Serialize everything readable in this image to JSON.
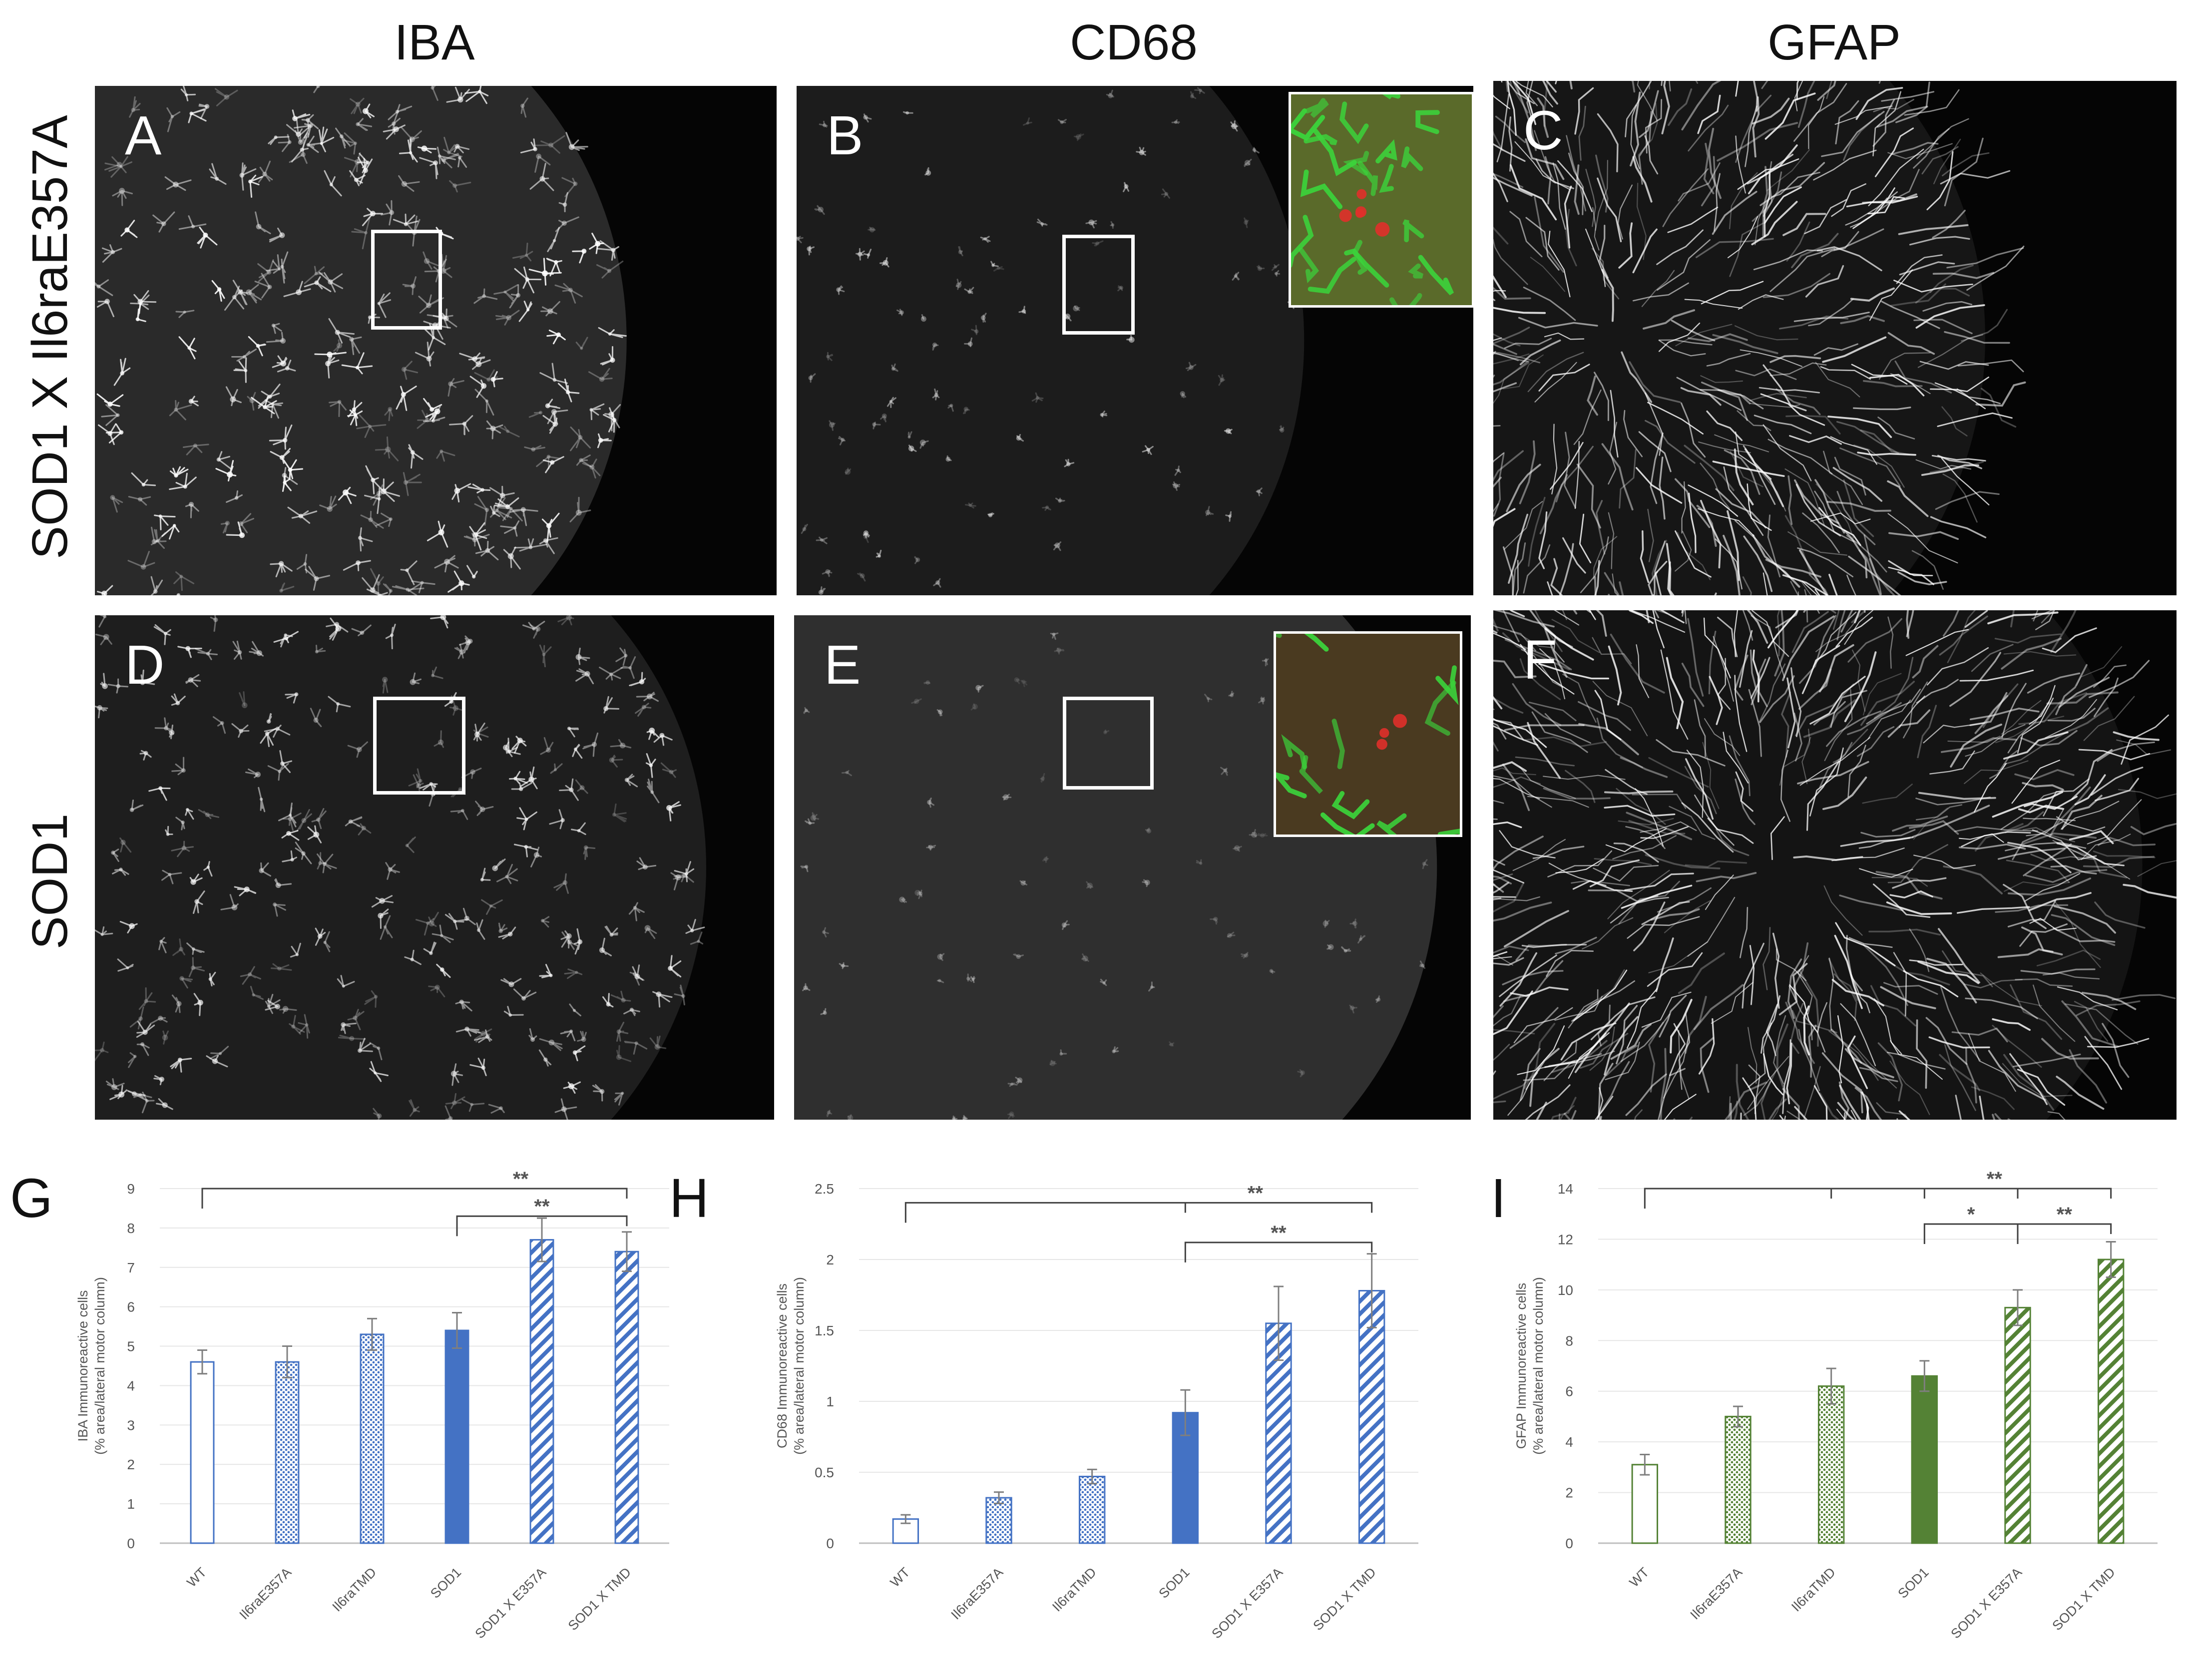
{
  "column_headers": [
    "IBA",
    "CD68",
    "GFAP"
  ],
  "row_headers": [
    "SOD1 X Il6raE357A",
    "SOD1"
  ],
  "panels": [
    {
      "letter": "A",
      "stain": "IBA",
      "genotype": "SOD1 X Il6raE357A",
      "roi_box": true,
      "inset": false
    },
    {
      "letter": "B",
      "stain": "CD68",
      "genotype": "SOD1 X Il6raE357A",
      "roi_box": true,
      "inset": true
    },
    {
      "letter": "C",
      "stain": "GFAP",
      "genotype": "SOD1 X Il6raE357A",
      "roi_box": false,
      "inset": false
    },
    {
      "letter": "D",
      "stain": "IBA",
      "genotype": "SOD1",
      "roi_box": true,
      "inset": false
    },
    {
      "letter": "E",
      "stain": "CD68",
      "genotype": "SOD1",
      "roi_box": true,
      "inset": true
    },
    {
      "letter": "F",
      "stain": "GFAP",
      "genotype": "SOD1",
      "roi_box": false,
      "inset": false
    }
  ],
  "colors": {
    "blue": "#4472c4",
    "green": "#548235",
    "axis": "#bfbfbf",
    "text": "#595959",
    "bracket": "#404040"
  },
  "chart_data": [
    {
      "letter": "G",
      "type": "bar",
      "ylabel": "IBA Immunoreactive cells\n(% area/lateral motor column)",
      "ylim": [
        0,
        9
      ],
      "yticks": [
        0,
        1,
        2,
        3,
        4,
        5,
        6,
        7,
        8,
        9
      ],
      "categories": [
        "WT",
        "Il6raE357A",
        "Il6raTMD",
        "SOD1",
        "SOD1 X E357A",
        "SOD1 X TMD"
      ],
      "values": [
        4.6,
        4.6,
        5.3,
        5.4,
        7.7,
        7.4
      ],
      "errors": [
        0.3,
        0.4,
        0.4,
        0.45,
        0.55,
        0.5
      ],
      "fills": [
        "open",
        "dots",
        "dots",
        "solid",
        "hatch",
        "hatch"
      ],
      "color": "blue",
      "significance": [
        {
          "label": "**",
          "from": 0,
          "to": 5,
          "level": 9.0
        },
        {
          "label": "**",
          "from": 3,
          "to": 5,
          "level": 8.3
        }
      ]
    },
    {
      "letter": "H",
      "type": "bar",
      "ylabel": "CD68 Immunoreactive cells\n(% area/lateral motor column)",
      "ylim": [
        0,
        2.5
      ],
      "yticks": [
        0,
        0.5,
        1,
        1.5,
        2,
        2.5
      ],
      "categories": [
        "WT",
        "Il6raE357A",
        "Il6raTMD",
        "SOD1",
        "SOD1 X E357A",
        "SOD1 X TMD"
      ],
      "values": [
        0.17,
        0.32,
        0.47,
        0.92,
        1.55,
        1.78
      ],
      "errors": [
        0.03,
        0.04,
        0.05,
        0.16,
        0.26,
        0.26
      ],
      "fills": [
        "open",
        "dots",
        "dots",
        "solid",
        "hatch",
        "hatch"
      ],
      "color": "blue",
      "significance": [
        {
          "label": "**",
          "from": 0,
          "to": 5,
          "level": 2.4,
          "ticks": [
            3
          ]
        },
        {
          "label": "**",
          "from": 3,
          "to": 5,
          "level": 2.12
        }
      ]
    },
    {
      "letter": "I",
      "type": "bar",
      "ylabel": "GFAP Immunoreactive cells\n(% area/lateral motor column)",
      "ylim": [
        0,
        14
      ],
      "yticks": [
        0,
        2,
        4,
        6,
        8,
        10,
        12,
        14
      ],
      "categories": [
        "WT",
        "Il6raE357A",
        "Il6raTMD",
        "SOD1",
        "SOD1 X E357A",
        "SOD1 X TMD"
      ],
      "values": [
        3.1,
        5.0,
        6.2,
        6.6,
        9.3,
        11.2
      ],
      "errors": [
        0.4,
        0.4,
        0.7,
        0.6,
        0.7,
        0.7
      ],
      "fills": [
        "open",
        "dots",
        "dots",
        "solid",
        "hatch",
        "hatch"
      ],
      "color": "green",
      "significance": [
        {
          "label": "**",
          "from": 0,
          "to": 5,
          "level": 14,
          "ticks": [
            2,
            3,
            4
          ]
        },
        {
          "label": "*",
          "from": 3,
          "to": 4,
          "level": 12.6
        },
        {
          "label": "**",
          "from": 4,
          "to": 5,
          "level": 12.6
        }
      ]
    }
  ]
}
